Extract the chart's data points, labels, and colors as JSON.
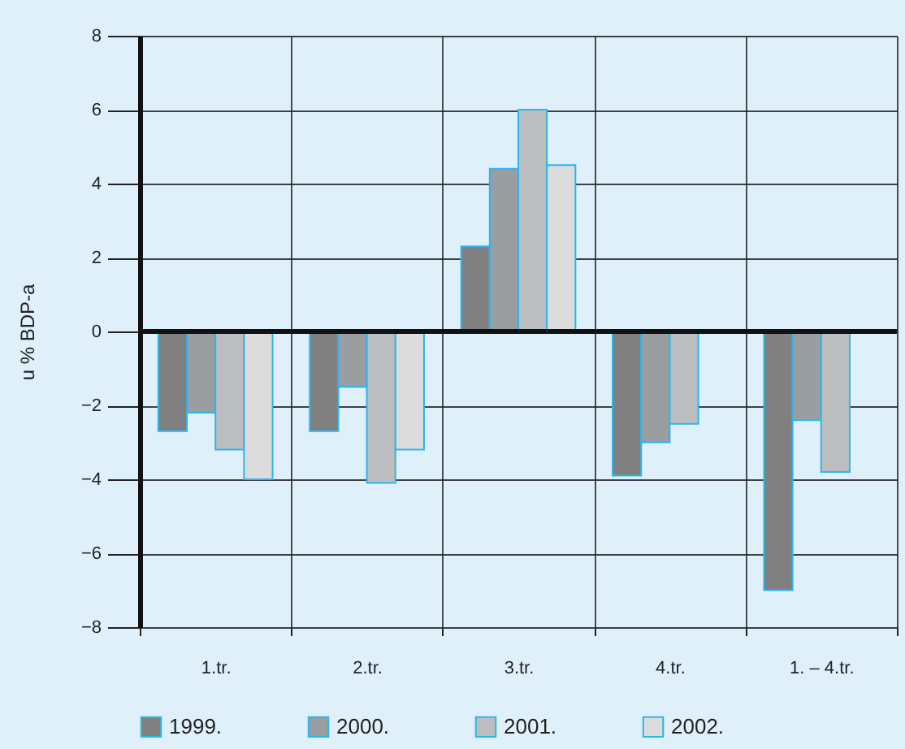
{
  "chart_data": {
    "type": "bar",
    "ylabel": "u % BDP-a",
    "categories": [
      "1.tr.",
      "2.tr.",
      "3.tr.",
      "4.tr.",
      "1. – 4.tr."
    ],
    "series": [
      {
        "name": "1999.",
        "color": "#808080",
        "values": [
          -2.7,
          -2.7,
          2.3,
          -3.9,
          -7.0
        ]
      },
      {
        "name": "2000.",
        "color": "#9a9ea0",
        "values": [
          -2.2,
          -1.5,
          4.4,
          -3.0,
          -2.4
        ]
      },
      {
        "name": "2001.",
        "color": "#bcbdbf",
        "values": [
          -3.2,
          -4.1,
          6.0,
          -2.5,
          -3.8
        ]
      },
      {
        "name": "2002.",
        "color": "#dcdcdd",
        "values": [
          -4.0,
          -3.2,
          4.5,
          null,
          null
        ]
      }
    ],
    "ylim": [
      -8,
      8
    ],
    "yticks": [
      {
        "value": -8,
        "label": "−8"
      },
      {
        "value": -6,
        "label": "−6"
      },
      {
        "value": -4,
        "label": "−4"
      },
      {
        "value": -2,
        "label": "−2"
      },
      0,
      2,
      4,
      6,
      8
    ],
    "grid": true,
    "legend": "bottom"
  }
}
